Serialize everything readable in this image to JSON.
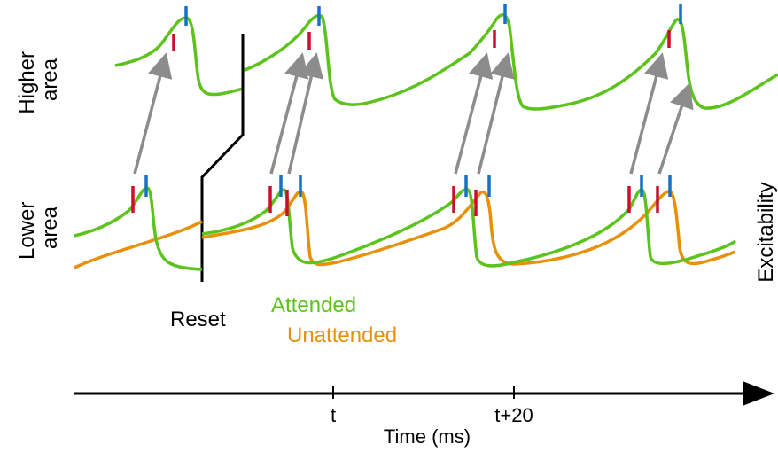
{
  "labels": {
    "higher_area": [
      "Higher",
      "area"
    ],
    "lower_area": [
      "Lower",
      "area"
    ],
    "excitability": "Excitability",
    "reset": "Reset",
    "attended": "Attended",
    "unattended": "Unattended",
    "time_axis": "Time (ms)",
    "tick_t": "t",
    "tick_t20": "t+20"
  },
  "colors": {
    "attended": "#5cc31c",
    "unattended": "#e8900a",
    "red_marker": "#c8102e",
    "blue_marker": "#1670c8",
    "arrow": "#8c8c8c",
    "reset_line": "#000000"
  }
}
